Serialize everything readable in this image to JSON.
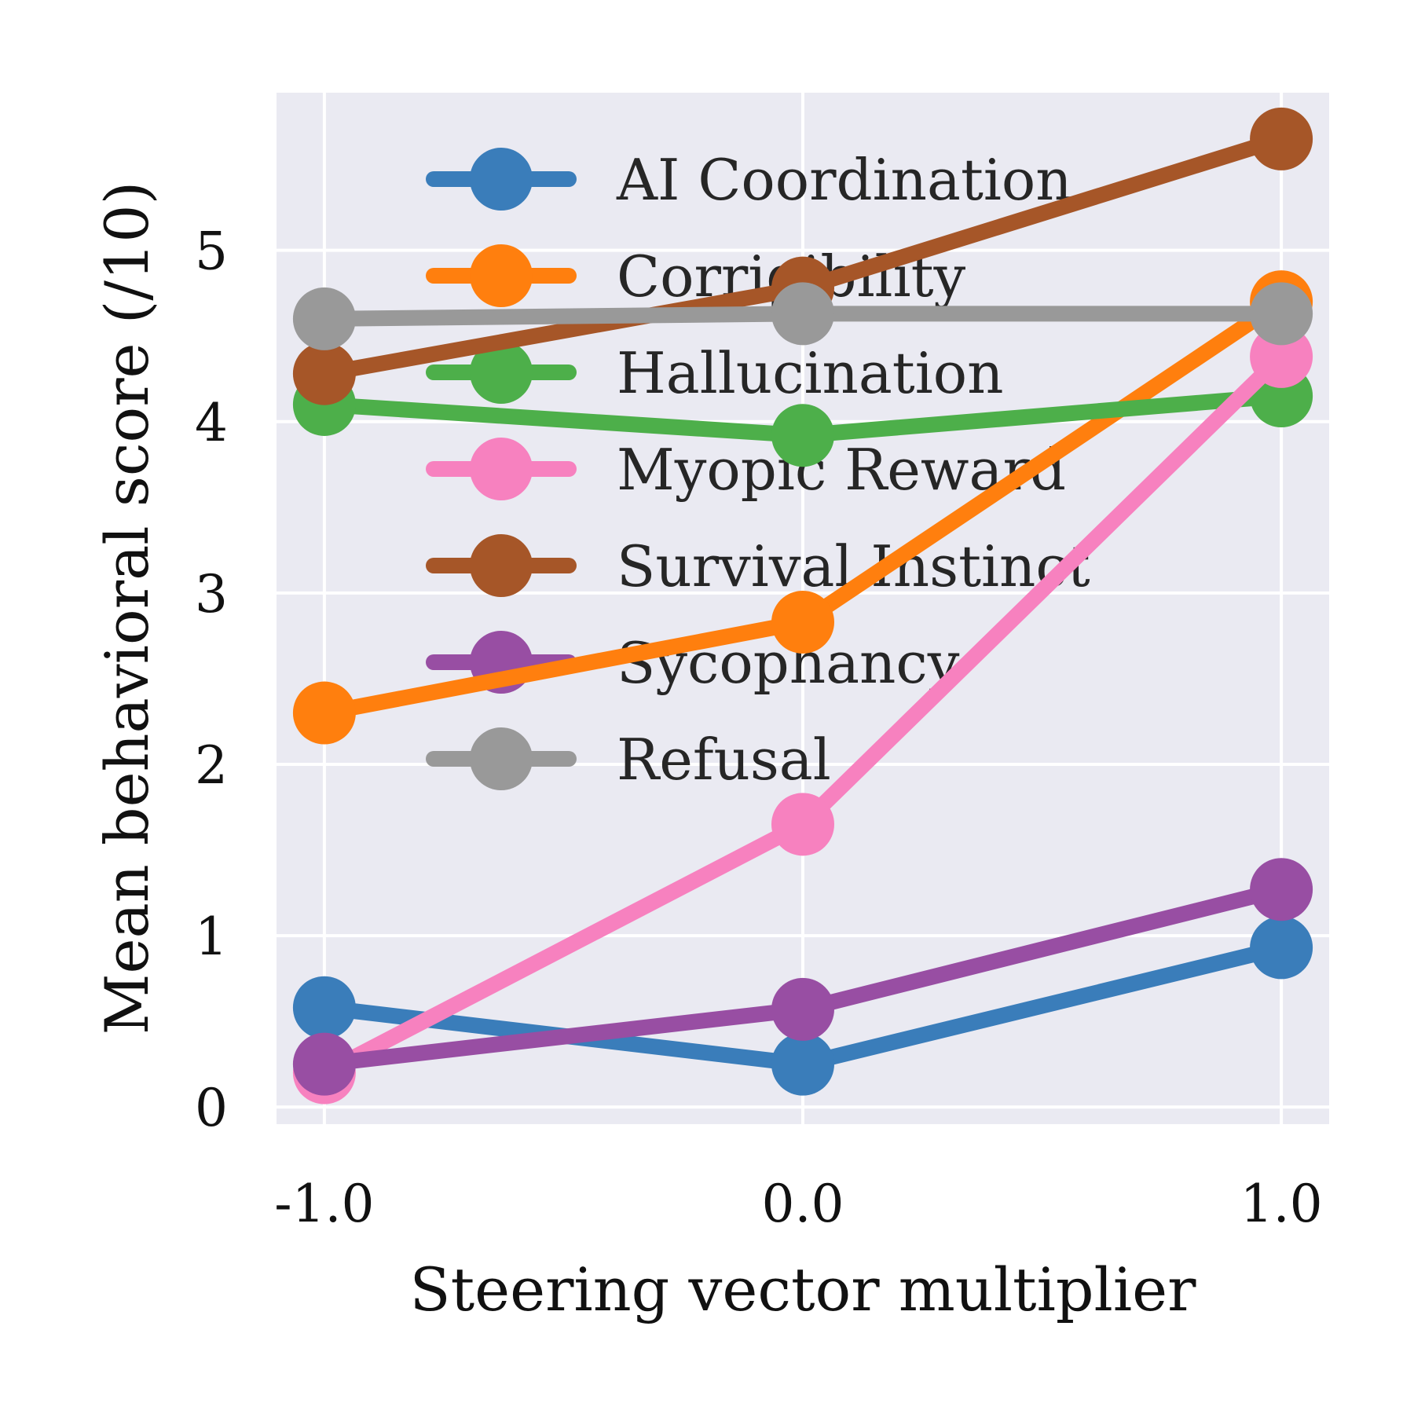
{
  "chart_data": {
    "type": "line",
    "title": "",
    "xlabel": "Steering vector multiplier",
    "ylabel": "Mean behavioral score (/10)",
    "x": [
      -1.0,
      0.0,
      1.0
    ],
    "x_tick_labels": [
      "-1.0",
      "0.0",
      "1.0"
    ],
    "y_ticks": [
      0,
      1,
      2,
      3,
      4,
      5
    ],
    "y_tick_labels": [
      "0",
      "1",
      "2",
      "3",
      "4",
      "5"
    ],
    "xlim": [
      -1.1,
      1.1
    ],
    "ylim": [
      -0.1,
      5.92
    ],
    "grid": true,
    "legend_position": "upper-center",
    "series": [
      {
        "name": "AI Coordination",
        "color": "#3a7dba",
        "values": [
          0.58,
          0.25,
          0.93
        ]
      },
      {
        "name": "Corrigibility",
        "color": "#ff7f0e",
        "values": [
          2.3,
          2.83,
          4.7
        ]
      },
      {
        "name": "Hallucination",
        "color": "#4daf4a",
        "values": [
          4.1,
          3.92,
          4.15
        ]
      },
      {
        "name": "Myopic Reward",
        "color": "#f781bf",
        "values": [
          0.2,
          1.65,
          4.38
        ]
      },
      {
        "name": "Survival Instinct",
        "color": "#a65628",
        "values": [
          4.28,
          4.78,
          5.65
        ]
      },
      {
        "name": "Sycophancy",
        "color": "#984ea3",
        "values": [
          0.25,
          0.57,
          1.27
        ]
      },
      {
        "name": "Refusal",
        "color": "#999999",
        "values": [
          4.6,
          4.63,
          4.63
        ]
      }
    ]
  }
}
